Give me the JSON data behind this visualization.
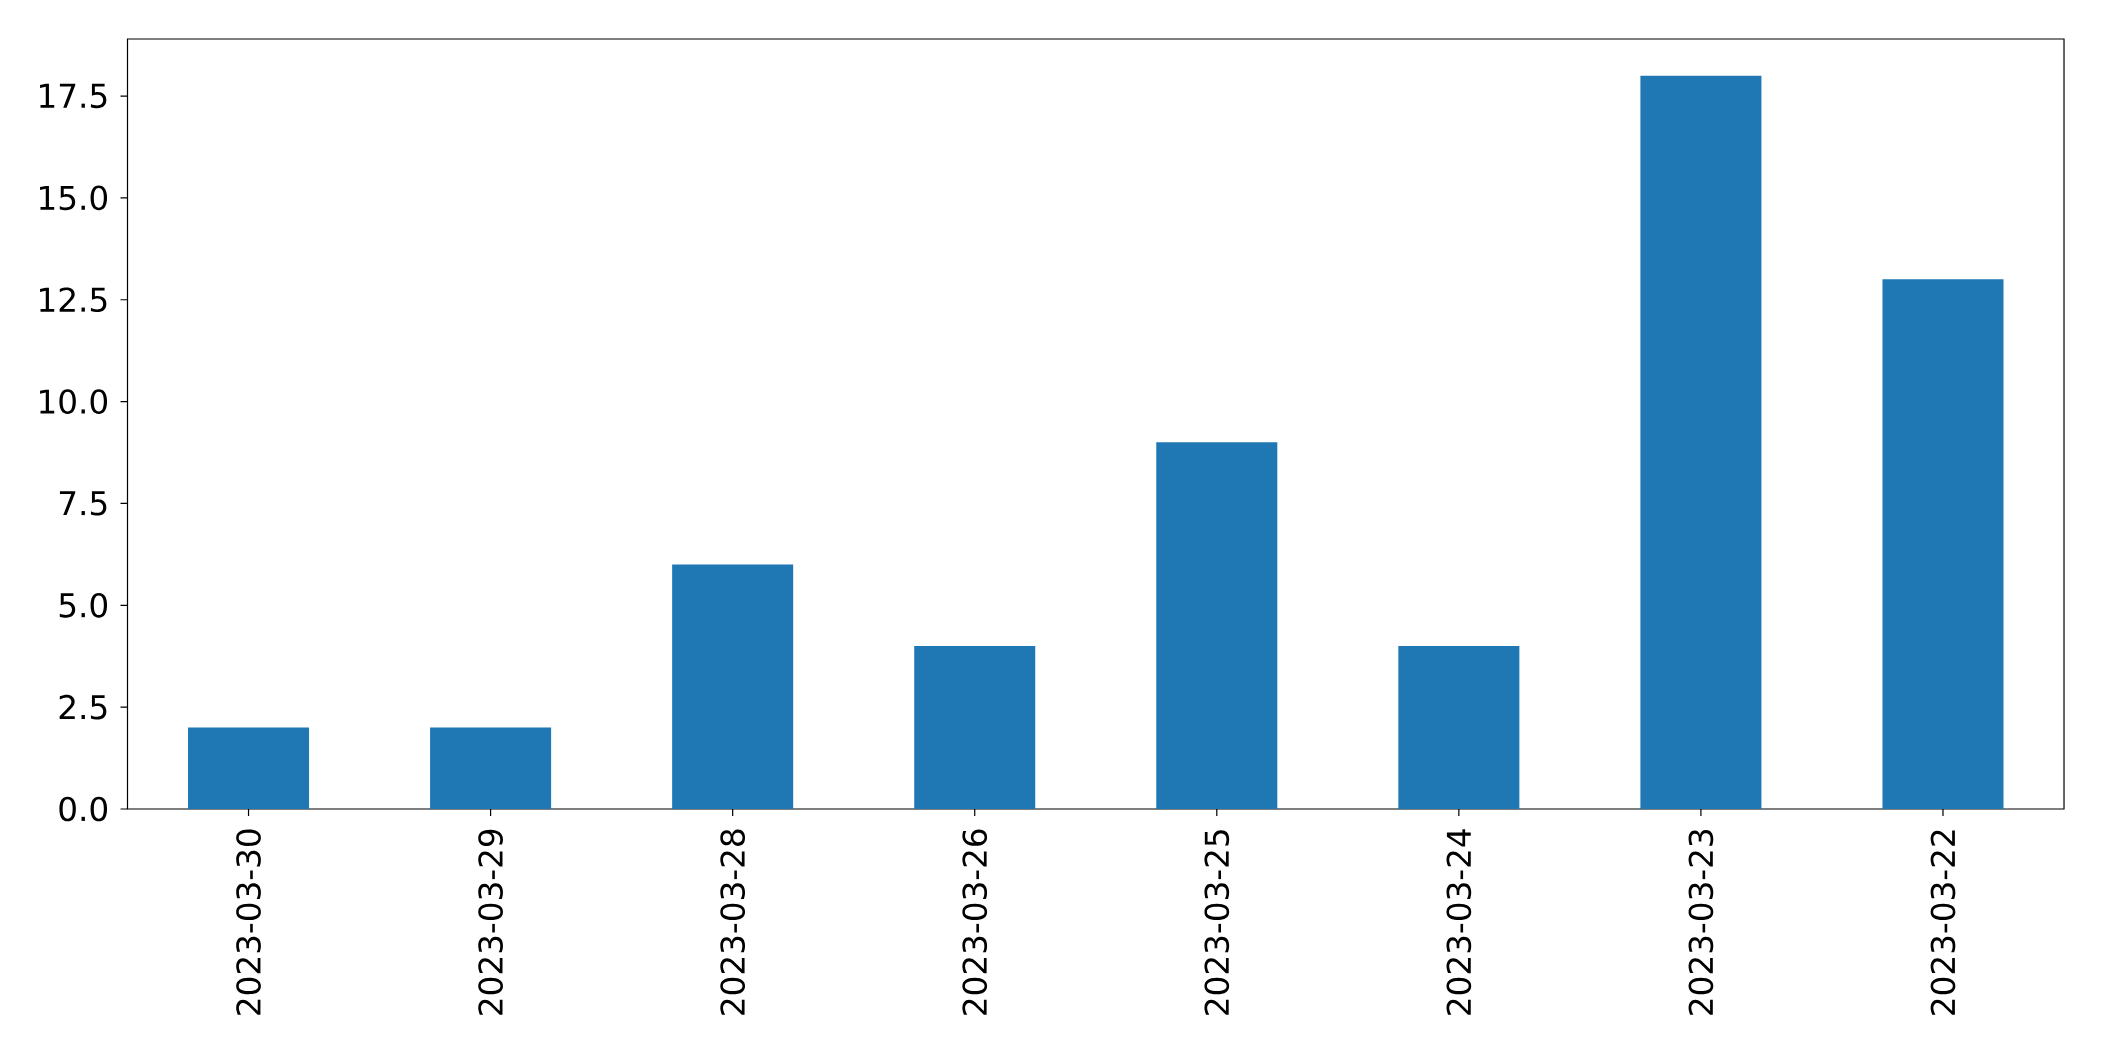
{
  "chart_data": {
    "type": "bar",
    "categories": [
      "2023-03-30",
      "2023-03-29",
      "2023-03-28",
      "2023-03-26",
      "2023-03-25",
      "2023-03-24",
      "2023-03-23",
      "2023-03-22"
    ],
    "values": [
      2,
      2,
      6,
      4,
      9,
      4,
      18,
      13
    ],
    "color": "#1f77b4",
    "ylim": [
      0,
      18.9
    ],
    "yticks": [
      {
        "value": 0,
        "label": "0.0"
      },
      2.5,
      {
        "value": 5,
        "label": "5.0"
      },
      7.5,
      {
        "value": 10,
        "label": "10.0"
      },
      12.5,
      {
        "value": 15,
        "label": "15.0"
      },
      17.5
    ]
  }
}
